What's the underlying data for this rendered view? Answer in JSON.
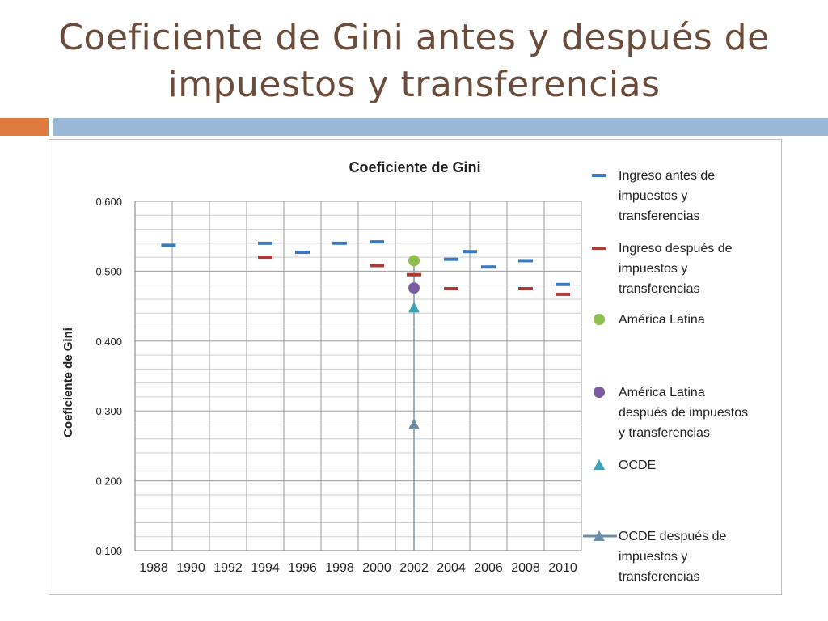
{
  "slide": {
    "title_line1": "Coeficiente de Gini antes y después de",
    "title_line2": "impuestos y transferencias"
  },
  "colors": {
    "title": "#6b4b3a",
    "accent_orange": "#e07b3f",
    "accent_blue": "#98b7d4"
  },
  "chart_data": {
    "type": "scatter",
    "title": "Coeficiente de Gini",
    "xlabel": "",
    "ylabel": "Coeficiente de Gini",
    "xlim": [
      1987,
      2011
    ],
    "ylim": [
      0.1,
      0.6
    ],
    "x_ticks": [
      "1988",
      "1990",
      "1992",
      "1994",
      "1996",
      "1998",
      "2000",
      "2002",
      "2004",
      "2006",
      "2008",
      "2010"
    ],
    "y_ticks": [
      "0.100",
      "0.200",
      "0.300",
      "0.400",
      "0.500",
      "0.600"
    ],
    "grid": true,
    "legend_position": "right",
    "series": [
      {
        "name": "Ingreso antes de impuestos y transferencias",
        "marker": "dash",
        "color": "#3a7bbf",
        "points": [
          [
            1988.8,
            0.537
          ],
          [
            1994,
            0.54
          ],
          [
            1996,
            0.527
          ],
          [
            1998,
            0.54
          ],
          [
            2000,
            0.542
          ],
          [
            2004,
            0.517
          ],
          [
            2005,
            0.528
          ],
          [
            2006,
            0.506
          ],
          [
            2008,
            0.515
          ],
          [
            2010,
            0.481
          ]
        ]
      },
      {
        "name": "Ingreso después de impuestos y transferencias",
        "marker": "dash",
        "color": "#b03a3a",
        "points": [
          [
            1994,
            0.52
          ],
          [
            2000,
            0.508
          ],
          [
            2002,
            0.495
          ],
          [
            2004,
            0.475
          ],
          [
            2008,
            0.475
          ],
          [
            2010,
            0.467
          ]
        ]
      },
      {
        "name": "América Latina",
        "marker": "circle",
        "color": "#8fbf4f",
        "points": [
          [
            2002,
            0.515
          ]
        ]
      },
      {
        "name": "América Latina después de impuestos y transferencias",
        "marker": "circle",
        "color": "#7a5aa0",
        "points": [
          [
            2002,
            0.476
          ]
        ]
      },
      {
        "name": "OCDE",
        "marker": "triangle",
        "color": "#3aa3b8",
        "points": [
          [
            2002,
            0.448
          ]
        ]
      },
      {
        "name": "OCDE después de impuestos y transferencias",
        "marker": "triangle-line",
        "color": "#6f8fa8",
        "points": [
          [
            2002,
            0.281
          ]
        ]
      }
    ],
    "legend": [
      {
        "lines": [
          "Ingreso antes de",
          "impuestos y",
          "transferencias"
        ]
      },
      {
        "lines": [
          "Ingreso después de",
          "impuestos y",
          "transferencias"
        ]
      },
      {
        "lines": [
          "América Latina"
        ]
      },
      {
        "lines": [
          "América Latina",
          "después de impuestos",
          "y transferencias"
        ]
      },
      {
        "lines": [
          "OCDE"
        ]
      },
      {
        "lines": [
          "OCDE después de",
          "impuestos y",
          "transferencias"
        ]
      }
    ]
  }
}
